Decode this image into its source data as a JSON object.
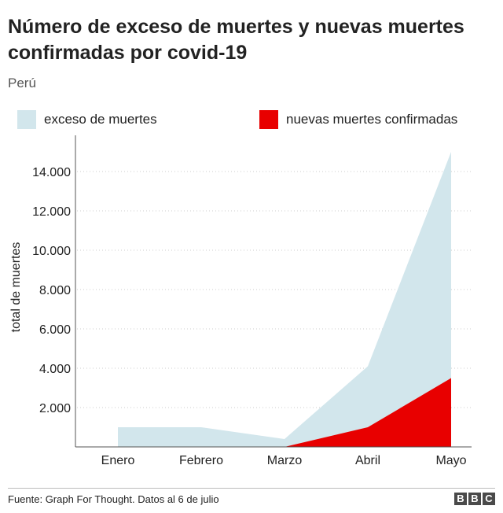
{
  "title": "Número de exceso de muertes y nuevas muertes confirmadas por covid-19",
  "subtitle": "Perú",
  "legend": [
    {
      "label": "exceso de muertes",
      "color": "#d2e6ec"
    },
    {
      "label": "nuevas muertes confirmadas",
      "color": "#e80000"
    }
  ],
  "source": "Fuente: Graph For Thought. Datos al 6 de julio",
  "logo": [
    "B",
    "B",
    "C"
  ],
  "chart_data": {
    "type": "area",
    "categories": [
      "Enero",
      "Febrero",
      "Marzo",
      "Abril",
      "Mayo"
    ],
    "series": [
      {
        "name": "exceso de muertes",
        "color": "#d2e6ec",
        "values": [
          1000,
          1000,
          400,
          4100,
          15000
        ]
      },
      {
        "name": "nuevas muertes confirmadas",
        "color": "#e80000",
        "values": [
          0,
          0,
          0,
          1000,
          3500
        ]
      }
    ],
    "ylabel": "total de muertes",
    "ylim": [
      0,
      15000
    ],
    "yticks": [
      2000,
      4000,
      6000,
      8000,
      10000,
      12000,
      14000
    ],
    "ytick_labels": [
      "2.000",
      "4.000",
      "6.000",
      "8.000",
      "10.000",
      "12.000",
      "14.000"
    ],
    "grid": true
  }
}
